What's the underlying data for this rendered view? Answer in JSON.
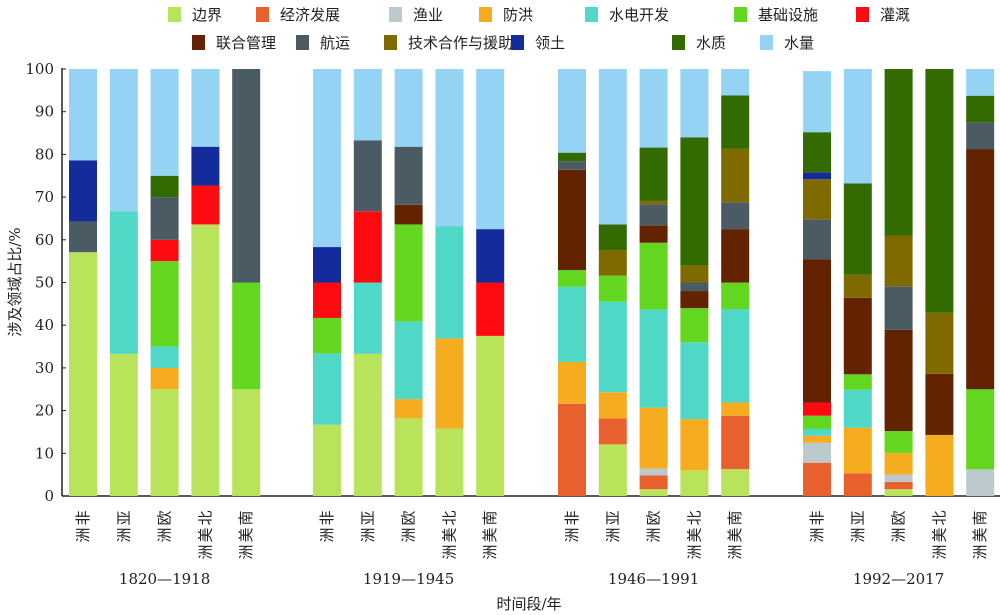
{
  "chart_data": {
    "type": "bar",
    "stacked": true,
    "title": "",
    "xlabel": "时间段/年",
    "ylabel": "涉及领域占比/%",
    "ylim": [
      0,
      100
    ],
    "yticks": [
      0,
      10,
      20,
      30,
      40,
      50,
      60,
      70,
      80,
      90,
      100
    ],
    "grid": false,
    "legend_position": "top",
    "legend": [
      {
        "name": "边界",
        "color": "#b8e35a"
      },
      {
        "name": "经济发展",
        "color": "#e9602f"
      },
      {
        "name": "渔业",
        "color": "#bdcacd"
      },
      {
        "name": "防洪",
        "color": "#f5ad1f"
      },
      {
        "name": "水电开发",
        "color": "#4fd8c6"
      },
      {
        "name": "基础设施",
        "color": "#63d61f"
      },
      {
        "name": "灌溉",
        "color": "#ff0a10"
      },
      {
        "name": "联合管理",
        "color": "#632300"
      },
      {
        "name": "航运",
        "color": "#4b5b63"
      },
      {
        "name": "技术合作与援助",
        "color": "#7f6a00"
      },
      {
        "name": "领土",
        "color": "#132b9b"
      },
      {
        "name": "水质",
        "color": "#336b00"
      },
      {
        "name": "水量",
        "color": "#94d3f4"
      }
    ],
    "groups": [
      {
        "period": "1820—1918",
        "bars": [
          {
            "region": "非洲",
            "values": {
              "边界": 57.1,
              "航运": 7.2,
              "领土": 14.3,
              "水量": 21.4
            }
          },
          {
            "region": "亚洲",
            "values": {
              "边界": 33.3,
              "水电开发": 33.4,
              "水量": 33.3
            }
          },
          {
            "region": "欧洲",
            "values": {
              "边界": 25,
              "防洪": 5,
              "水电开发": 5,
              "基础设施": 20,
              "灌溉": 5,
              "航运": 10,
              "水质": 5,
              "水量": 25
            }
          },
          {
            "region": "北美洲",
            "values": {
              "边界": 63.6,
              "灌溉": 9.1,
              "领土": 9.1,
              "水量": 18.2
            }
          },
          {
            "region": "南美洲",
            "values": {
              "边界": 25,
              "基础设施": 25,
              "航运": 50
            }
          }
        ]
      },
      {
        "period": "1919—1945",
        "bars": [
          {
            "region": "非洲",
            "values": {
              "边界": 16.7,
              "水电开发": 16.7,
              "基础设施": 8.3,
              "灌溉": 8.3,
              "领土": 8.3,
              "水量": 41.7
            }
          },
          {
            "region": "亚洲",
            "values": {
              "边界": 33.3,
              "水电开发": 16.7,
              "灌溉": 16.7,
              "航运": 16.6,
              "水量": 16.7
            }
          },
          {
            "region": "欧洲",
            "values": {
              "边界": 18.2,
              "防洪": 4.5,
              "水电开发": 18.2,
              "基础设施": 22.7,
              "联合管理": 4.6,
              "航运": 13.6,
              "水量": 18.2
            }
          },
          {
            "region": "北美洲",
            "values": {
              "边界": 15.8,
              "防洪": 21.1,
              "水电开发": 26.3,
              "水量": 36.8
            }
          },
          {
            "region": "南美洲",
            "values": {
              "边界": 37.5,
              "灌溉": 12.5,
              "领土": 12.5,
              "水量": 37.5
            }
          }
        ]
      },
      {
        "period": "1946—1991",
        "bars": [
          {
            "region": "非洲",
            "values": {
              "经济发展": 21.6,
              "防洪": 9.8,
              "水电开发": 17.6,
              "基础设施": 3.9,
              "联合管理": 23.5,
              "航运": 2.0,
              "水质": 2.0,
              "水量": 19.6
            }
          },
          {
            "region": "亚洲",
            "values": {
              "边界": 12.1,
              "经济发展": 6.1,
              "防洪": 6.1,
              "水电开发": 21.2,
              "基础设施": 6.1,
              "技术合作与援助": 6.0,
              "水质": 6.0,
              "水量": 36.4
            }
          },
          {
            "region": "欧洲",
            "values": {
              "边界": 1.6,
              "经济发展": 3.2,
              "渔业": 1.6,
              "防洪": 14.3,
              "水电开发": 23.0,
              "基础设施": 15.6,
              "联合管理": 4.1,
              "航运": 4.9,
              "技术合作与援助": 0.8,
              "水质": 12.5,
              "水量": 18.4
            }
          },
          {
            "region": "北美洲",
            "values": {
              "边界": 6,
              "防洪": 12,
              "水电开发": 18,
              "基础设施": 8,
              "联合管理": 4,
              "航运": 2,
              "技术合作与援助": 4,
              "水质": 30,
              "水量": 16
            }
          },
          {
            "region": "南美洲",
            "values": {
              "边界": 6.3,
              "经济发展": 12.5,
              "防洪": 3.1,
              "水电开发": 21.9,
              "基础设施": 6.2,
              "联合管理": 12.5,
              "航运": 6.3,
              "技术合作与援助": 12.5,
              "水质": 12.5,
              "水量": 6.2
            }
          }
        ]
      },
      {
        "period": "1992—2017",
        "bars": [
          {
            "region": "非洲",
            "values": {
              "经济发展": 7.8,
              "渔业": 4.7,
              "防洪": 1.6,
              "水电开发": 1.6,
              "基础设施": 3.1,
              "灌溉": 3.1,
              "联合管理": 33.5,
              "航运": 9.4,
              "技术合作与援助": 9.4,
              "领土": 1.6,
              "水质": 9.4,
              "水量": 14.3
            }
          },
          {
            "region": "亚洲",
            "values": {
              "经济发展": 5.3,
              "防洪": 10.7,
              "水电开发": 8.9,
              "基础设施": 3.6,
              "联合管理": 17.9,
              "技术合作与援助": 5.4,
              "水质": 21.4,
              "水量": 26.8
            }
          },
          {
            "region": "欧洲",
            "values": {
              "边界": 1.6,
              "经济发展": 1.7,
              "渔业": 1.7,
              "防洪": 5.1,
              "基础设施": 5.1,
              "联合管理": 23.7,
              "航运": 10.2,
              "技术合作与援助": 11.9,
              "水质": 39.0
            }
          },
          {
            "region": "北美洲",
            "values": {
              "防洪": 14.3,
              "联合管理": 14.3,
              "技术合作与援助": 14.3,
              "水质": 57.1
            }
          },
          {
            "region": "南美洲",
            "values": {
              "渔业": 6.25,
              "基础设施": 18.75,
              "联合管理": 56.25,
              "航运": 6.25,
              "水质": 6.25,
              "水量": 6.25
            }
          }
        ]
      }
    ]
  }
}
